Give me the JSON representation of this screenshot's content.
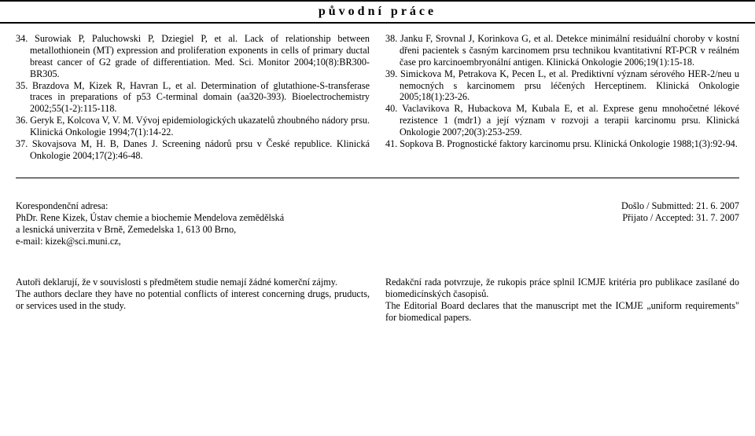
{
  "header": {
    "title": "původní práce"
  },
  "references_left": [
    "34. Surowiak P, Paluchowski P, Dziegiel P, et al. Lack of relationship between metallothionein (MT) expression and proliferation exponents in cells of primary ductal breast cancer of G2 grade of differentiation. Med. Sci. Monitor 2004;10(8):BR300-BR305.",
    "35. Brazdova M, Kizek R, Havran L, et al. Determination of glutathione-S-transferase traces in preparations of p53 C-terminal domain (aa320-393). Bioelectrochemistry 2002;55(1-2):115-118.",
    "36. Geryk E, Kolcova V, V. M. Vývoj epidemiologických ukazatelů zhoubného nádory prsu. Klinická Onkologie 1994;7(1):14-22.",
    "37. Skovajsova M, H. B, Danes J. Screening nádorů prsu v České republice. Klinická Onkologie 2004;17(2):46-48."
  ],
  "references_right": [
    "38. Janku F, Srovnal J, Korinkova G, et al. Detekce minimální residuální choroby v kostní dřeni pacientek s časným karcinomem prsu technikou kvantitativní RT-PCR v reálném čase pro karcinoembryonální antigen. Klinická Onkologie 2006;19(1):15-18.",
    "39. Simickova M, Petrakova K, Pecen L, et al. Prediktivní význam sérového HER-2/neu u nemocných s karcinomem prsu léčených Herceptinem. Klinická Onkologie 2005;18(1):23-26.",
    "40. Vaclavikova R, Hubackova M, Kubala E, et al. Exprese genu mnohočetné lékové rezistence 1 (mdr1) a její význam v rozvoji a terapii karcinomu prsu. Klinická Onkologie 2007;20(3):253-259.",
    "41. Sopkova B. Prognostické faktory karcinomu prsu. Klinická Onkologie 1988;1(3):92-94."
  ],
  "correspondence": {
    "label": "Korespondenční adresa:",
    "line1": "PhDr. Rene Kizek, Ústav chemie a biochemie Mendelova zemědělská",
    "line2": "a lesnická univerzita v Brně, Zemedelska 1, 613 00 Brno,",
    "line3": "e-mail: kizek@sci.muni.cz,"
  },
  "dates": {
    "submitted": "Došlo / Submitted:  21. 6. 2007",
    "accepted": "Přijato / Accepted:  31. 7. 2007"
  },
  "declarations": {
    "left_cs": "Autoři deklarují, že v souvislosti s předmětem studie nemají žádné komerční zájmy.",
    "left_en": "The authors declare they have no potential conflicts of interest concerning drugs, pruducts, or services used in the study.",
    "right_cs": "Redakční rada potvrzuje, že rukopis práce splnil ICMJE kritéria pro publikace zasílané do biomedicínských časopisů.",
    "right_en": "The Editorial Board declares that the manuscript met the ICMJE „uniform requirements\" for biomedical papers."
  }
}
